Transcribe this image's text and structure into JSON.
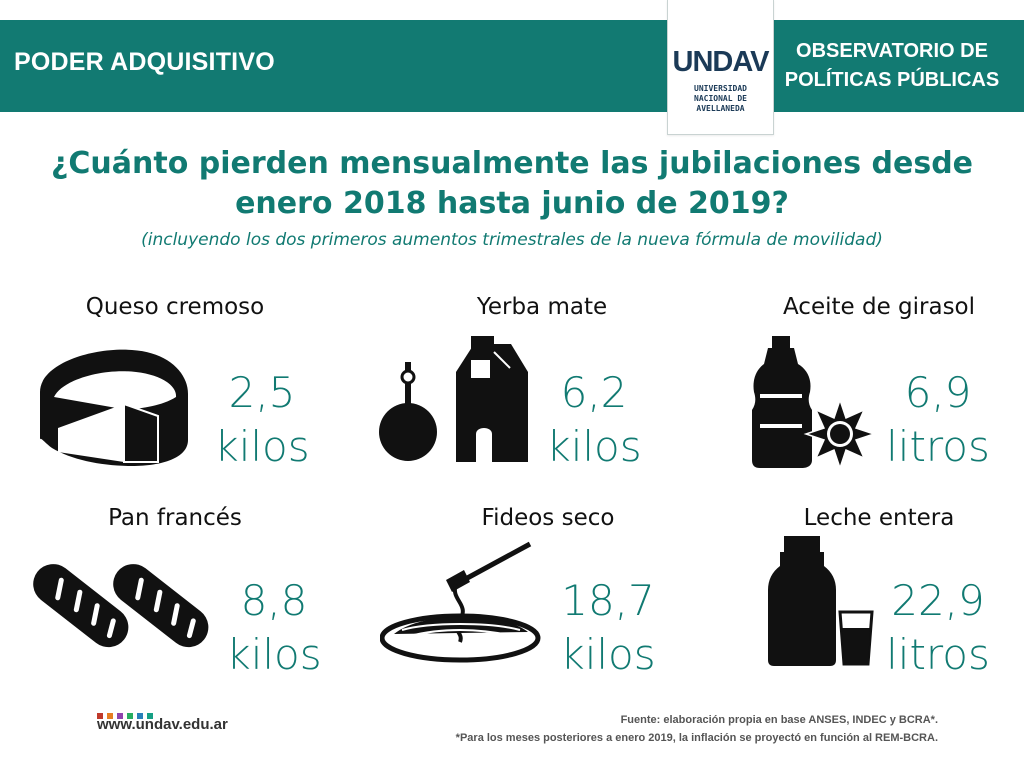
{
  "header": {
    "left_title": "PODER ADQUISITIVO",
    "right_title_line1": "OBSERVATORIO DE",
    "right_title_line2": "POLÍTICAS PÚBLICAS",
    "logo_word": "UNDAV",
    "logo_sub_line1": "UNIVERSIDAD",
    "logo_sub_line2": "NACIONAL DE",
    "logo_sub_line3": "AVELLANEDA",
    "band_color": "#127a72"
  },
  "title_line1": "¿Cuánto pierden mensualmente las jubilaciones desde",
  "title_line2": "enero 2018 hasta junio de 2019?",
  "subtitle": "(incluyendo los dos primeros aumentos trimestrales de la nueva fórmula de movilidad)",
  "items": [
    {
      "label": "Queso cremoso",
      "value": "2,5",
      "unit": "kilos",
      "icon": "cheese-icon"
    },
    {
      "label": "Yerba mate",
      "value": "6,2",
      "unit": "kilos",
      "icon": "yerba-mate-icon"
    },
    {
      "label": "Aceite de girasol",
      "value": "6,9",
      "unit": "litros",
      "icon": "oil-bottle-icon"
    },
    {
      "label": "Pan francés",
      "value": "8,8",
      "unit": "kilos",
      "icon": "bread-icon"
    },
    {
      "label": "Fideos seco",
      "value": "18,7",
      "unit": "kilos",
      "icon": "spaghetti-icon"
    },
    {
      "label": "Leche entera",
      "value": "22,9",
      "unit": "litros",
      "icon": "milk-icon"
    }
  ],
  "footer": {
    "website": "www.undav.edu.ar",
    "source_line1": "Fuente: elaboración propia en base ANSES, INDEC y BCRA*.",
    "source_line2": "*Para los meses posteriores a enero 2019, la inflación se proyectó en función al REM-BCRA.",
    "dot_colors": [
      "#c0392b",
      "#e67e22",
      "#8e44ad",
      "#27ae60",
      "#2980b9",
      "#16a085"
    ]
  },
  "accent_color": "#117a72"
}
